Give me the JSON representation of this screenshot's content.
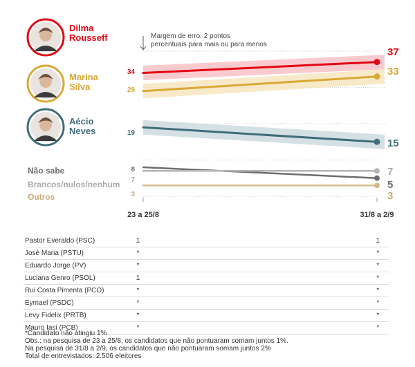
{
  "chart_data": {
    "type": "line",
    "x": [
      "23 a 25/8",
      "31/8 a 2/9"
    ],
    "ylim": [
      0,
      40
    ],
    "error_margin_note": [
      "Margem de erro: 2 pontos",
      "percentuais para mais ou para menos"
    ],
    "margin_of_error": 2,
    "series": [
      {
        "name": "Dilma Rousseff",
        "name_lines": [
          "Dilma",
          "Rousseff"
        ],
        "values": [
          34,
          37
        ],
        "color": "#e30613",
        "band_color": "#f7b9bd",
        "label_color": "#e30613",
        "photo": true
      },
      {
        "name": "Marina Silva",
        "name_lines": [
          "Marina",
          "Silva"
        ],
        "values": [
          29,
          33
        ],
        "color": "#d9a836",
        "band_color": "#f5e3b6",
        "label_color": "#d9a836",
        "photo": true
      },
      {
        "name": "Aécio Neves",
        "name_lines": [
          "Aécio",
          "Neves"
        ],
        "values": [
          19,
          15
        ],
        "color": "#3f6d7a",
        "band_color": "#c5d6db",
        "label_color": "#3f6d7a",
        "photo": true
      },
      {
        "name": "Não sabe",
        "name_lines": [
          "Não sabe"
        ],
        "values": [
          8,
          5
        ],
        "color": "#6d6d6d",
        "label_color": "#6d6d6d",
        "photo": false
      },
      {
        "name": "Brancos/nulos/nenhum",
        "name_lines": [
          "Brancos/nulos/nenhum"
        ],
        "values": [
          7,
          7
        ],
        "color": "#b4b4b4",
        "label_color": "#a9a9a9",
        "photo": false
      },
      {
        "name": "Outros",
        "name_lines": [
          "Outros"
        ],
        "values": [
          3,
          3
        ],
        "color": "#d4b98a",
        "label_color": "#c9a978",
        "photo": false
      }
    ]
  },
  "minor_candidates": [
    {
      "name": "Pastor Everaldo (PSC)",
      "first": "1",
      "last": "1"
    },
    {
      "name": "José Maria (PSTU)",
      "first": "*",
      "last": "*"
    },
    {
      "name": "Eduardo Jorge (PV)",
      "first": "*",
      "last": "*"
    },
    {
      "name": "Luciana Genro (PSOL)",
      "first": "1",
      "last": "*"
    },
    {
      "name": "Rui Costa Pimenta (PCO)",
      "first": "*",
      "last": "*"
    },
    {
      "name": "Eymael (PSDC)",
      "first": "*",
      "last": "*"
    },
    {
      "name": "Levy Fidelix (PRTB)",
      "first": "*",
      "last": "*"
    },
    {
      "name": "Mauro Iasi (PCB)",
      "first": "*",
      "last": "*"
    }
  ],
  "footnotes": [
    "*Candidato não atingiu 1%",
    "Obs.: na pesquisa de 23 a 25/8, os candidatos que não pontuaram somam juntos 1%.",
    "Na pesquisa de 31/8 a 2/9, os candidatos que não pontuaram somam juntos 2%",
    "Total de entrevistados: 2.506 eleitores"
  ]
}
